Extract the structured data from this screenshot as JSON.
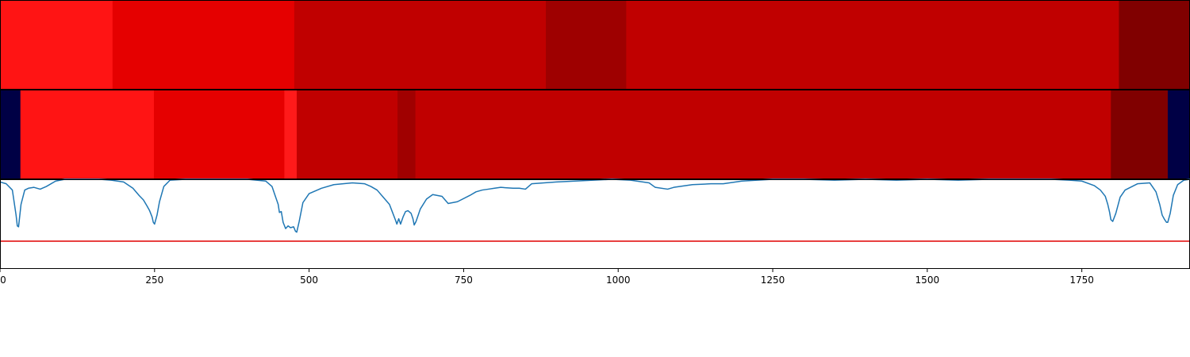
{
  "chart_data": [
    {
      "type": "heatmap",
      "title": "",
      "xlabel": "",
      "ylabel": "",
      "xlim": [
        0,
        1925
      ],
      "segments": [
        {
          "start": 0,
          "end": 182,
          "color": "#ff1414"
        },
        {
          "start": 182,
          "end": 476,
          "color": "#e50000"
        },
        {
          "start": 476,
          "end": 883,
          "color": "#c00000"
        },
        {
          "start": 883,
          "end": 1013,
          "color": "#9e0000"
        },
        {
          "start": 1013,
          "end": 1810,
          "color": "#c00000"
        },
        {
          "start": 1810,
          "end": 1925,
          "color": "#800000"
        }
      ]
    },
    {
      "type": "heatmap",
      "title": "",
      "xlabel": "",
      "ylabel": "",
      "xlim": [
        0,
        1925
      ],
      "segments": [
        {
          "start": 0,
          "end": 33,
          "color": "#000045"
        },
        {
          "start": 33,
          "end": 249,
          "color": "#ff1414"
        },
        {
          "start": 249,
          "end": 460,
          "color": "#e50000"
        },
        {
          "start": 460,
          "end": 480,
          "color": "#ff1a1a"
        },
        {
          "start": 480,
          "end": 643,
          "color": "#c00000"
        },
        {
          "start": 643,
          "end": 672,
          "color": "#a00000"
        },
        {
          "start": 672,
          "end": 1797,
          "color": "#c00000"
        },
        {
          "start": 1797,
          "end": 1889,
          "color": "#800000"
        },
        {
          "start": 1889,
          "end": 1925,
          "color": "#000045"
        }
      ]
    },
    {
      "type": "line",
      "title": "",
      "xlabel": "",
      "ylabel": "",
      "xlim": [
        0,
        1925
      ],
      "ylim": [
        0,
        1
      ],
      "xticks": [
        "0",
        "250",
        "500",
        "750",
        "1000",
        "1250",
        "1500",
        "1750"
      ],
      "xtick_values": [
        0,
        250,
        500,
        750,
        1000,
        1250,
        1500,
        1750
      ],
      "threshold": {
        "y": 0.31,
        "color": "#e00000"
      },
      "series": [
        {
          "color": "#1f77b4",
          "x": [
            0,
            10,
            20,
            26,
            28,
            30,
            34,
            40,
            46,
            55,
            65,
            75,
            90,
            105,
            120,
            140,
            160,
            180,
            200,
            215,
            225,
            232,
            238,
            242,
            246,
            248,
            250,
            254,
            258,
            265,
            275,
            300,
            350,
            400,
            430,
            440,
            445,
            450,
            452,
            455,
            458,
            462,
            466,
            470,
            475,
            478,
            480,
            484,
            490,
            500,
            520,
            540,
            570,
            590,
            600,
            610,
            620,
            630,
            635,
            640,
            642,
            645,
            648,
            652,
            656,
            660,
            665,
            668,
            670,
            673,
            680,
            690,
            700,
            715,
            725,
            740,
            760,
            770,
            780,
            790,
            800,
            810,
            830,
            840,
            850,
            860,
            880,
            900,
            930,
            960,
            990,
            1020,
            1050,
            1060,
            1080,
            1090,
            1100,
            1120,
            1150,
            1170,
            1200,
            1250,
            1300,
            1350,
            1400,
            1450,
            1500,
            1550,
            1600,
            1650,
            1700,
            1730,
            1750,
            1770,
            1780,
            1788,
            1792,
            1795,
            1797,
            1800,
            1805,
            1812,
            1820,
            1840,
            1860,
            1870,
            1876,
            1880,
            1884,
            1887,
            1889,
            1893,
            1898,
            1905,
            1915,
            1925
          ],
          "y": [
            0.97,
            0.95,
            0.88,
            0.6,
            0.48,
            0.47,
            0.72,
            0.88,
            0.9,
            0.91,
            0.89,
            0.92,
            0.98,
            1.0,
            1.0,
            1.0,
            1.0,
            0.99,
            0.97,
            0.9,
            0.82,
            0.77,
            0.7,
            0.65,
            0.58,
            0.52,
            0.5,
            0.6,
            0.75,
            0.92,
            0.99,
            1.0,
            1.0,
            1.0,
            0.98,
            0.92,
            0.82,
            0.72,
            0.63,
            0.64,
            0.52,
            0.45,
            0.48,
            0.46,
            0.47,
            0.42,
            0.41,
            0.53,
            0.74,
            0.84,
            0.9,
            0.94,
            0.96,
            0.95,
            0.92,
            0.88,
            0.8,
            0.72,
            0.63,
            0.54,
            0.5,
            0.56,
            0.5,
            0.58,
            0.64,
            0.65,
            0.62,
            0.56,
            0.49,
            0.53,
            0.67,
            0.78,
            0.83,
            0.81,
            0.73,
            0.75,
            0.82,
            0.86,
            0.88,
            0.89,
            0.9,
            0.91,
            0.9,
            0.9,
            0.89,
            0.95,
            0.96,
            0.97,
            0.98,
            0.99,
            1.0,
            0.99,
            0.96,
            0.91,
            0.89,
            0.91,
            0.92,
            0.94,
            0.95,
            0.95,
            0.98,
            1.0,
            1.0,
            0.99,
            1.0,
            0.99,
            1.0,
            0.99,
            1.0,
            1.0,
            1.0,
            0.99,
            0.98,
            0.93,
            0.88,
            0.81,
            0.72,
            0.63,
            0.55,
            0.53,
            0.62,
            0.8,
            0.88,
            0.95,
            0.96,
            0.86,
            0.72,
            0.6,
            0.55,
            0.52,
            0.52,
            0.62,
            0.82,
            0.94,
            0.99,
            1.0
          ]
        }
      ]
    }
  ]
}
